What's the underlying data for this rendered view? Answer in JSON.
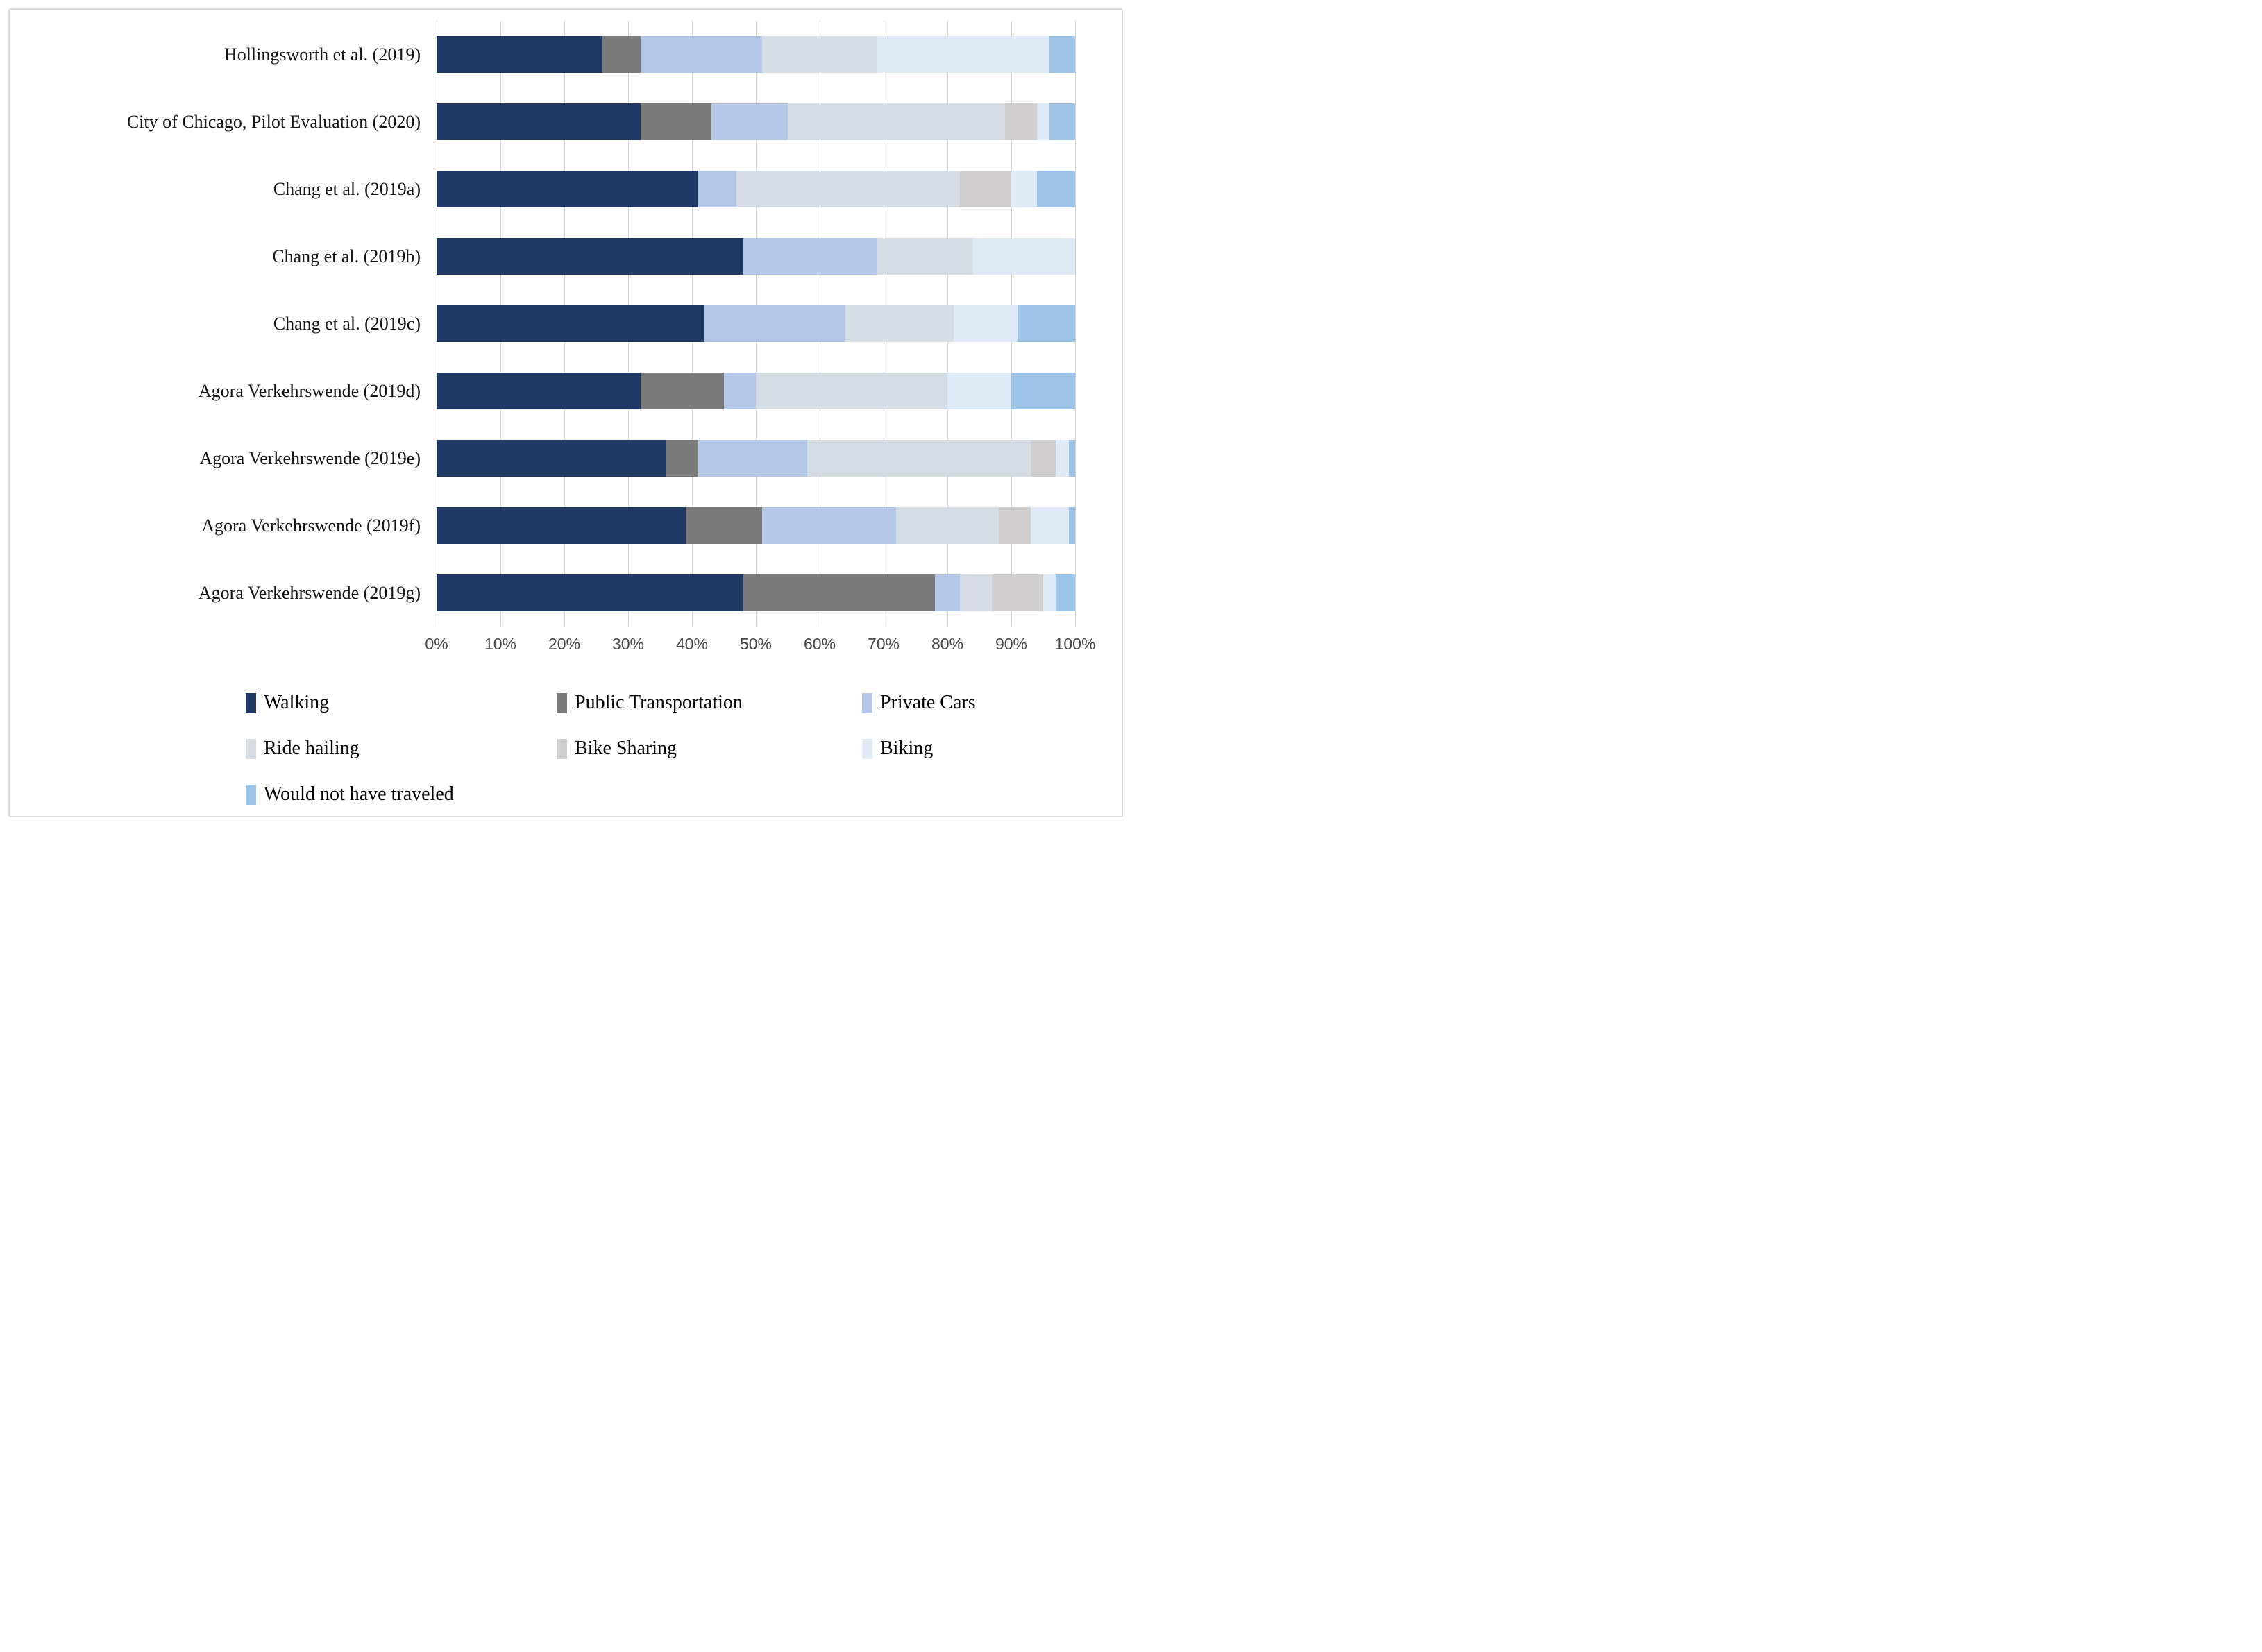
{
  "figure": {
    "background": "#ffffff",
    "border_color": "#dcdcdc",
    "gridline_color": "#d4d4d4",
    "axis_text_color": "#474747"
  },
  "chart_data": {
    "type": "bar",
    "orientation": "horizontal",
    "stacked": true,
    "unit": "percent",
    "title": "",
    "xlabel": "",
    "ylabel": "",
    "xlim": [
      0,
      100
    ],
    "grid": true,
    "legend_position": "bottom",
    "categories": [
      "Hollingsworth et al. (2019)",
      "City of Chicago, Pilot Evaluation (2020)",
      "Chang et al. (2019a)",
      "Chang et al. (2019b)",
      "Chang et al. (2019c)",
      "Agora Verkehrswende (2019d)",
      "Agora Verkehrswende (2019e)",
      "Agora Verkehrswende (2019f)",
      "Agora Verkehrswende (2019g)"
    ],
    "series": [
      {
        "name": "Walking",
        "color": "#1f3864",
        "values": [
          26,
          32,
          41,
          48,
          42,
          32,
          36,
          39,
          48
        ]
      },
      {
        "name": "Public Transportation",
        "color": "#7b7b7b",
        "values": [
          6,
          11,
          0,
          0,
          0,
          13,
          5,
          12,
          30
        ]
      },
      {
        "name": "Private Cars",
        "color": "#b4c7e7",
        "values": [
          19,
          12,
          6,
          21,
          22,
          5,
          17,
          21,
          4
        ]
      },
      {
        "name": "Ride hailing",
        "color": "#d6dce4",
        "values": [
          18,
          34,
          35,
          15,
          17,
          30,
          35,
          16,
          5
        ]
      },
      {
        "name": "Bike Sharing",
        "color": "#d0cece",
        "values": [
          0,
          5,
          8,
          0,
          0,
          0,
          4,
          5,
          8
        ]
      },
      {
        "name": "Biking",
        "color": "#deeaf6",
        "values": [
          27,
          2,
          4,
          16,
          10,
          10,
          2,
          6,
          2
        ]
      },
      {
        "name": "Would not have traveled",
        "color": "#9dc3e6",
        "values": [
          4,
          4,
          6,
          0,
          9,
          10,
          1,
          1,
          3
        ]
      }
    ],
    "x_axis": {
      "tick_labels": [
        "0%",
        "10%",
        "20%",
        "30%",
        "40%",
        "50%",
        "60%",
        "70%",
        "80%",
        "90%",
        "100%"
      ],
      "tick_values": [
        0,
        10,
        20,
        30,
        40,
        50,
        60,
        70,
        80,
        90,
        100
      ]
    }
  }
}
